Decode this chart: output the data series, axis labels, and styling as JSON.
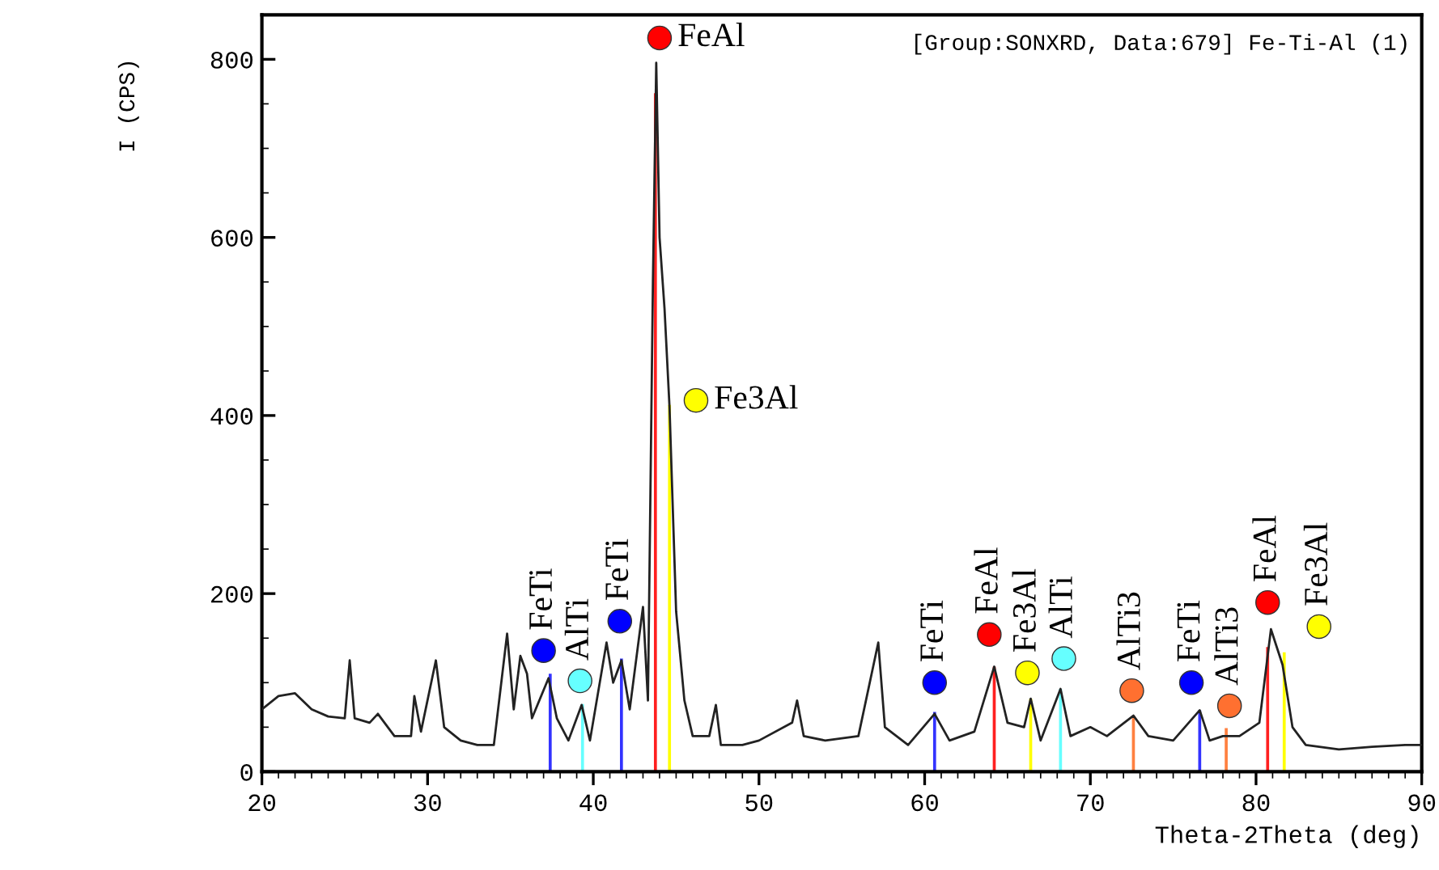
{
  "chart_data": {
    "type": "line",
    "xlabel": "Theta-2Theta (deg)",
    "ylabel": "I (CPS)",
    "xlim": [
      20,
      90
    ],
    "ylim": [
      0,
      850
    ],
    "xticks": [
      20,
      30,
      40,
      50,
      60,
      70,
      80,
      90
    ],
    "yticks": [
      0,
      200,
      400,
      600,
      800
    ],
    "grid": false,
    "legend": false,
    "marker": "none",
    "line_style": "solid",
    "series": [
      {
        "color": "#222222",
        "x": [
          20,
          21,
          22,
          23,
          24,
          25,
          25.3,
          25.6,
          26.5,
          27,
          28,
          29,
          29.2,
          29.6,
          30.5,
          31,
          32,
          33,
          34,
          34.8,
          35.2,
          35.6,
          36,
          36.3,
          37.3,
          37.8,
          38.5,
          39.3,
          39.8,
          40.8,
          41.2,
          41.7,
          42.2,
          43.0,
          43.3,
          43.6,
          43.8,
          44.0,
          44.3,
          44.6,
          45.0,
          45.5,
          46,
          47,
          47.4,
          47.7,
          49,
          50,
          52,
          52.3,
          52.7,
          54,
          56,
          57.2,
          57.6,
          59,
          60.6,
          61.5,
          63,
          64.2,
          65,
          66,
          66.4,
          67,
          68.2,
          68.8,
          70,
          71,
          72.6,
          73.5,
          75,
          76.6,
          77.2,
          78,
          79,
          80.2,
          80.9,
          81.6,
          82.2,
          83,
          85,
          87,
          89,
          90
        ],
        "values": [
          70,
          85,
          88,
          70,
          62,
          60,
          125,
          60,
          55,
          65,
          40,
          40,
          85,
          45,
          125,
          50,
          35,
          30,
          30,
          155,
          70,
          130,
          110,
          60,
          105,
          60,
          35,
          75,
          35,
          145,
          100,
          125,
          70,
          185,
          80,
          550,
          796,
          600,
          520,
          410,
          180,
          80,
          40,
          40,
          75,
          30,
          30,
          35,
          55,
          80,
          40,
          35,
          40,
          145,
          50,
          30,
          65,
          35,
          45,
          118,
          55,
          50,
          82,
          35,
          93,
          40,
          50,
          40,
          63,
          40,
          35,
          69,
          35,
          40,
          40,
          55,
          160,
          120,
          50,
          30,
          25,
          28,
          30,
          30
        ]
      },
      {
        "type": "bar",
        "color": "#3333ff",
        "x": [
          37.4,
          41.7,
          60.6,
          76.6
        ],
        "values": [
          110,
          127,
          67,
          69
        ]
      },
      {
        "type": "bar",
        "color": "#66ffff",
        "x": [
          39.35,
          68.2
        ],
        "values": [
          76,
          93
        ]
      },
      {
        "type": "bar",
        "color": "#ff2020",
        "x": [
          43.75,
          64.2,
          80.7
        ],
        "values": [
          762,
          118,
          140
        ]
      },
      {
        "type": "bar",
        "color": "#ffff00",
        "x": [
          44.6,
          66.4,
          81.7
        ],
        "values": [
          412,
          82,
          134
        ]
      },
      {
        "type": "bar",
        "color": "#ff8040",
        "x": [
          72.6,
          78.2
        ],
        "values": [
          63,
          49
        ]
      },
      {
        "type": "scatter",
        "color": "#0000ff",
        "marker": "circle",
        "x": [
          37.0,
          41.6,
          60.6,
          76.1
        ],
        "values": [
          136,
          169,
          100,
          100
        ]
      },
      {
        "type": "scatter",
        "color": "#66ffff",
        "marker": "circle",
        "x": [
          39.2,
          68.4
        ],
        "values": [
          102,
          127
        ]
      },
      {
        "type": "scatter",
        "color": "#ff0000",
        "marker": "circle",
        "x": [
          44.0,
          63.9,
          80.7
        ],
        "values": [
          824,
          154,
          190
        ]
      },
      {
        "type": "scatter",
        "color": "#ffff00",
        "marker": "circle",
        "x": [
          46.2,
          66.2,
          83.8
        ],
        "values": [
          417,
          111,
          163
        ]
      },
      {
        "type": "scatter",
        "color": "#ff7030",
        "marker": "circle",
        "x": [
          72.5,
          78.4
        ],
        "values": [
          91,
          74
        ]
      }
    ],
    "annotations": [
      {
        "text": "FeTi",
        "x": 37.0,
        "y": 136
      },
      {
        "text": "AlTi",
        "x": 39.2,
        "y": 102
      },
      {
        "text": "FeTi",
        "x": 41.6,
        "y": 169
      },
      {
        "text": "FeAl",
        "x": 44.0,
        "y": 824
      },
      {
        "text": "Fe3Al",
        "x": 46.2,
        "y": 417
      },
      {
        "text": "FeTi",
        "x": 60.6,
        "y": 100
      },
      {
        "text": "FeAl",
        "x": 63.9,
        "y": 154
      },
      {
        "text": "Fe3Al",
        "x": 66.2,
        "y": 111
      },
      {
        "text": "AlTi",
        "x": 68.4,
        "y": 127
      },
      {
        "text": "AlTi3",
        "x": 72.5,
        "y": 91
      },
      {
        "text": "FeTi",
        "x": 76.1,
        "y": 100
      },
      {
        "text": "AlTi3",
        "x": 78.4,
        "y": 74
      },
      {
        "text": "FeAl",
        "x": 80.7,
        "y": 190
      },
      {
        "text": "Fe3Al",
        "x": 83.8,
        "y": 163
      },
      "[Group:SONXRD, Data:679] Fe-Ti-Al (1)"
    ]
  }
}
